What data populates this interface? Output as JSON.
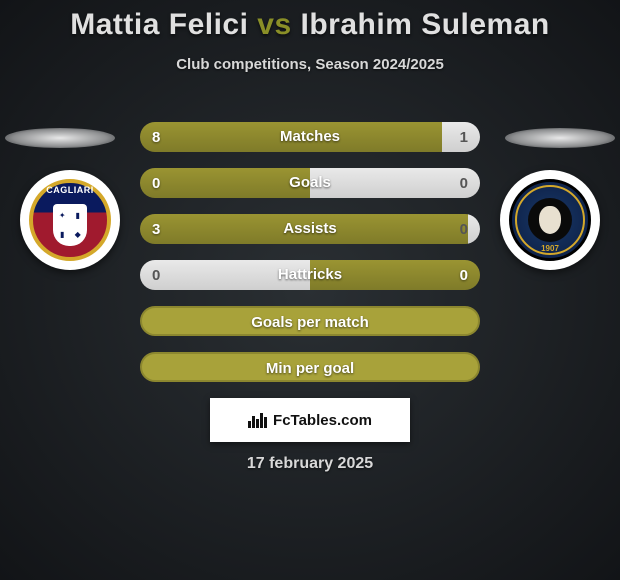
{
  "title": {
    "player1": "Mattia Felici",
    "vs": "vs",
    "player2": "Ibrahim Suleman",
    "vs_color": "#8a8f27"
  },
  "subtitle": "Club competitions, Season 2024/2025",
  "date": "17 february 2025",
  "badges": {
    "left": {
      "label": "CAGLIARI"
    },
    "right": {
      "year": "1907"
    }
  },
  "colors": {
    "bar_olive": "#9a9432",
    "bar_olive_dark": "#7f7b29",
    "bar_white": "#e9e9e9",
    "bar_white_dark": "#cfcfcf",
    "full_bar": "#a8a23a",
    "full_bar_border": "#8c872f"
  },
  "bars": [
    {
      "label": "Matches",
      "left_val": "8",
      "right_val": "1",
      "left_pct": 88.9,
      "left_color": "olive",
      "right_color": "white"
    },
    {
      "label": "Goals",
      "left_val": "0",
      "right_val": "0",
      "left_pct": 50.0,
      "left_color": "olive",
      "right_color": "white"
    },
    {
      "label": "Assists",
      "left_val": "3",
      "right_val": "0",
      "left_pct": 100,
      "left_color": "olive",
      "right_color": "white"
    },
    {
      "label": "Hattricks",
      "left_val": "0",
      "right_val": "0",
      "left_pct": 50.0,
      "left_color": "white",
      "right_color": "olive"
    },
    {
      "label": "Goals per match",
      "full": true
    },
    {
      "label": "Min per goal",
      "full": true
    }
  ],
  "fctables": {
    "text": "FcTables.com"
  }
}
